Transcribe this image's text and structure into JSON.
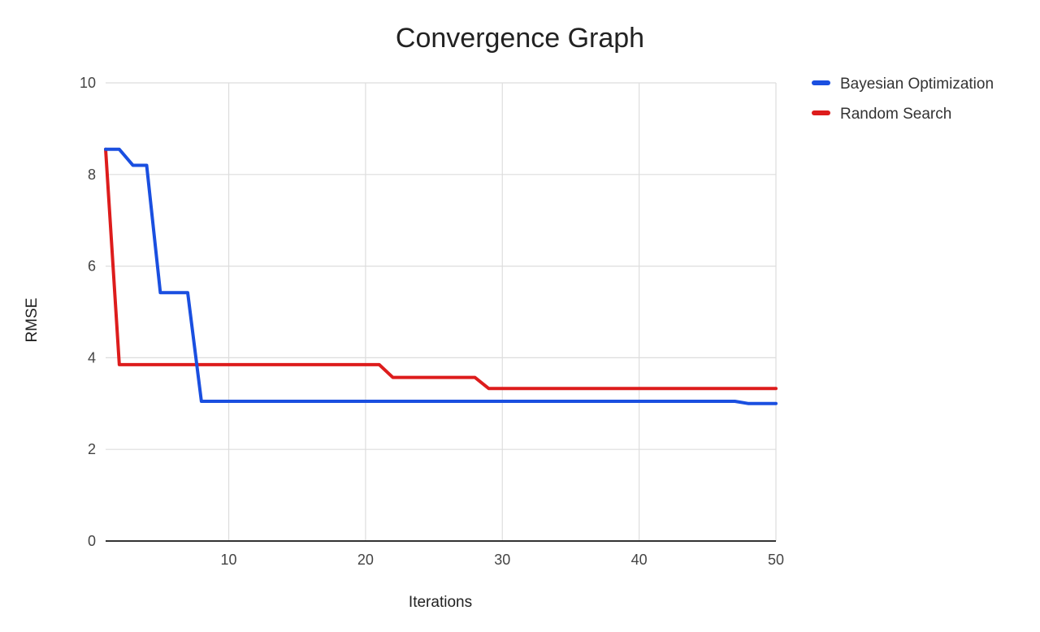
{
  "chart_data": {
    "type": "line",
    "title": "Convergence Graph",
    "xlabel": "Iterations",
    "ylabel": "RMSE",
    "xlim": [
      1,
      50
    ],
    "ylim": [
      0,
      10
    ],
    "x_ticks": [
      10,
      20,
      30,
      40,
      50
    ],
    "y_ticks": [
      0,
      2,
      4,
      6,
      8,
      10
    ],
    "grid": true,
    "legend_position": "top-right",
    "x": [
      1,
      2,
      3,
      4,
      5,
      6,
      7,
      8,
      9,
      10,
      11,
      12,
      13,
      14,
      15,
      16,
      17,
      18,
      19,
      20,
      21,
      22,
      23,
      24,
      25,
      26,
      27,
      28,
      29,
      30,
      31,
      32,
      33,
      34,
      35,
      36,
      37,
      38,
      39,
      40,
      41,
      42,
      43,
      44,
      45,
      46,
      47,
      48,
      49,
      50
    ],
    "series": [
      {
        "name": "Bayesian Optimization",
        "color": "#1a4fe0",
        "values": [
          8.55,
          8.55,
          8.2,
          8.2,
          5.42,
          5.42,
          5.42,
          3.05,
          3.05,
          3.05,
          3.05,
          3.05,
          3.05,
          3.05,
          3.05,
          3.05,
          3.05,
          3.05,
          3.05,
          3.05,
          3.05,
          3.05,
          3.05,
          3.05,
          3.05,
          3.05,
          3.05,
          3.05,
          3.05,
          3.05,
          3.05,
          3.05,
          3.05,
          3.05,
          3.05,
          3.05,
          3.05,
          3.05,
          3.05,
          3.05,
          3.05,
          3.05,
          3.05,
          3.05,
          3.05,
          3.05,
          3.05,
          3.0,
          3.0,
          3.0
        ]
      },
      {
        "name": "Random Search",
        "color": "#dd1c1c",
        "values": [
          8.55,
          3.85,
          3.85,
          3.85,
          3.85,
          3.85,
          3.85,
          3.85,
          3.85,
          3.85,
          3.85,
          3.85,
          3.85,
          3.85,
          3.85,
          3.85,
          3.85,
          3.85,
          3.85,
          3.85,
          3.85,
          3.57,
          3.57,
          3.57,
          3.57,
          3.57,
          3.57,
          3.57,
          3.33,
          3.33,
          3.33,
          3.33,
          3.33,
          3.33,
          3.33,
          3.33,
          3.33,
          3.33,
          3.33,
          3.33,
          3.33,
          3.33,
          3.33,
          3.33,
          3.33,
          3.33,
          3.33,
          3.33,
          3.33,
          3.33
        ]
      }
    ]
  }
}
